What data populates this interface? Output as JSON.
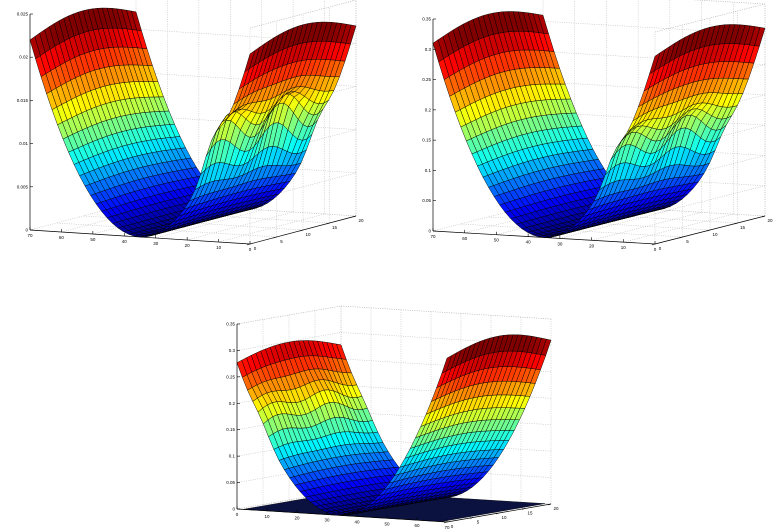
{
  "chart_data": [
    {
      "type": "surface",
      "position": "top-left",
      "colormap": "jet",
      "grid": true,
      "xlabel": "",
      "ylabel": "",
      "zlabel": "",
      "xlim": [
        0,
        70
      ],
      "ylim": [
        0,
        20
      ],
      "zlim": [
        0,
        0.025
      ],
      "xticks": [
        "0",
        "10",
        "20",
        "30",
        "40",
        "50",
        "60",
        "70"
      ],
      "yticks": [
        "0",
        "5",
        "10",
        "15",
        "20"
      ],
      "zticks": [
        "0",
        "0.005",
        "0.01",
        "0.015",
        "0.02",
        "0.025"
      ],
      "surface": {
        "shape": "parabolic trough along x",
        "x_min_at": 35,
        "z_min": 0.0,
        "z_max": 0.022,
        "ridge_near_x": 12,
        "ridge_height": 0.004
      }
    },
    {
      "type": "surface",
      "position": "top-right",
      "colormap": "jet",
      "grid": true,
      "xlabel": "",
      "ylabel": "",
      "zlabel": "",
      "xlim": [
        0,
        70
      ],
      "ylim": [
        0,
        20
      ],
      "zlim": [
        0,
        0.35
      ],
      "xticks": [
        "0",
        "10",
        "20",
        "30",
        "40",
        "50",
        "60",
        "70"
      ],
      "yticks": [
        "0",
        "5",
        "10",
        "15",
        "20"
      ],
      "zticks": [
        "0",
        "0.05",
        "0.1",
        "0.15",
        "0.2",
        "0.25",
        "0.3",
        "0.35"
      ],
      "surface": {
        "shape": "parabolic trough along x",
        "x_min_at": 35,
        "z_min": 0.0,
        "z_max": 0.31,
        "ridge_near_x": 13,
        "ridge_height": 0.04
      }
    },
    {
      "type": "surface",
      "position": "bottom-center",
      "colormap": "jet",
      "grid": true,
      "xlabel": "",
      "ylabel": "",
      "zlabel": "",
      "xlim": [
        0,
        70
      ],
      "ylim": [
        0,
        20
      ],
      "zlim": [
        0,
        0.35
      ],
      "xticks": [
        "0",
        "10",
        "20",
        "30",
        "40",
        "50",
        "60",
        "70"
      ],
      "yticks": [
        "0",
        "5",
        "10",
        "15",
        "20"
      ],
      "zticks": [
        "0",
        "0.05",
        "0.1",
        "0.15",
        "0.2",
        "0.25",
        "0.3",
        "0.35"
      ],
      "surface": {
        "shape": "parabolic trough along x",
        "x_min_at": 34,
        "z_min": 0.0,
        "z_max": 0.31,
        "ridge_near_x": 8,
        "ridge_height": 0.02
      },
      "base_plane": {
        "z": 0.0,
        "color": "#0b1240"
      }
    }
  ]
}
